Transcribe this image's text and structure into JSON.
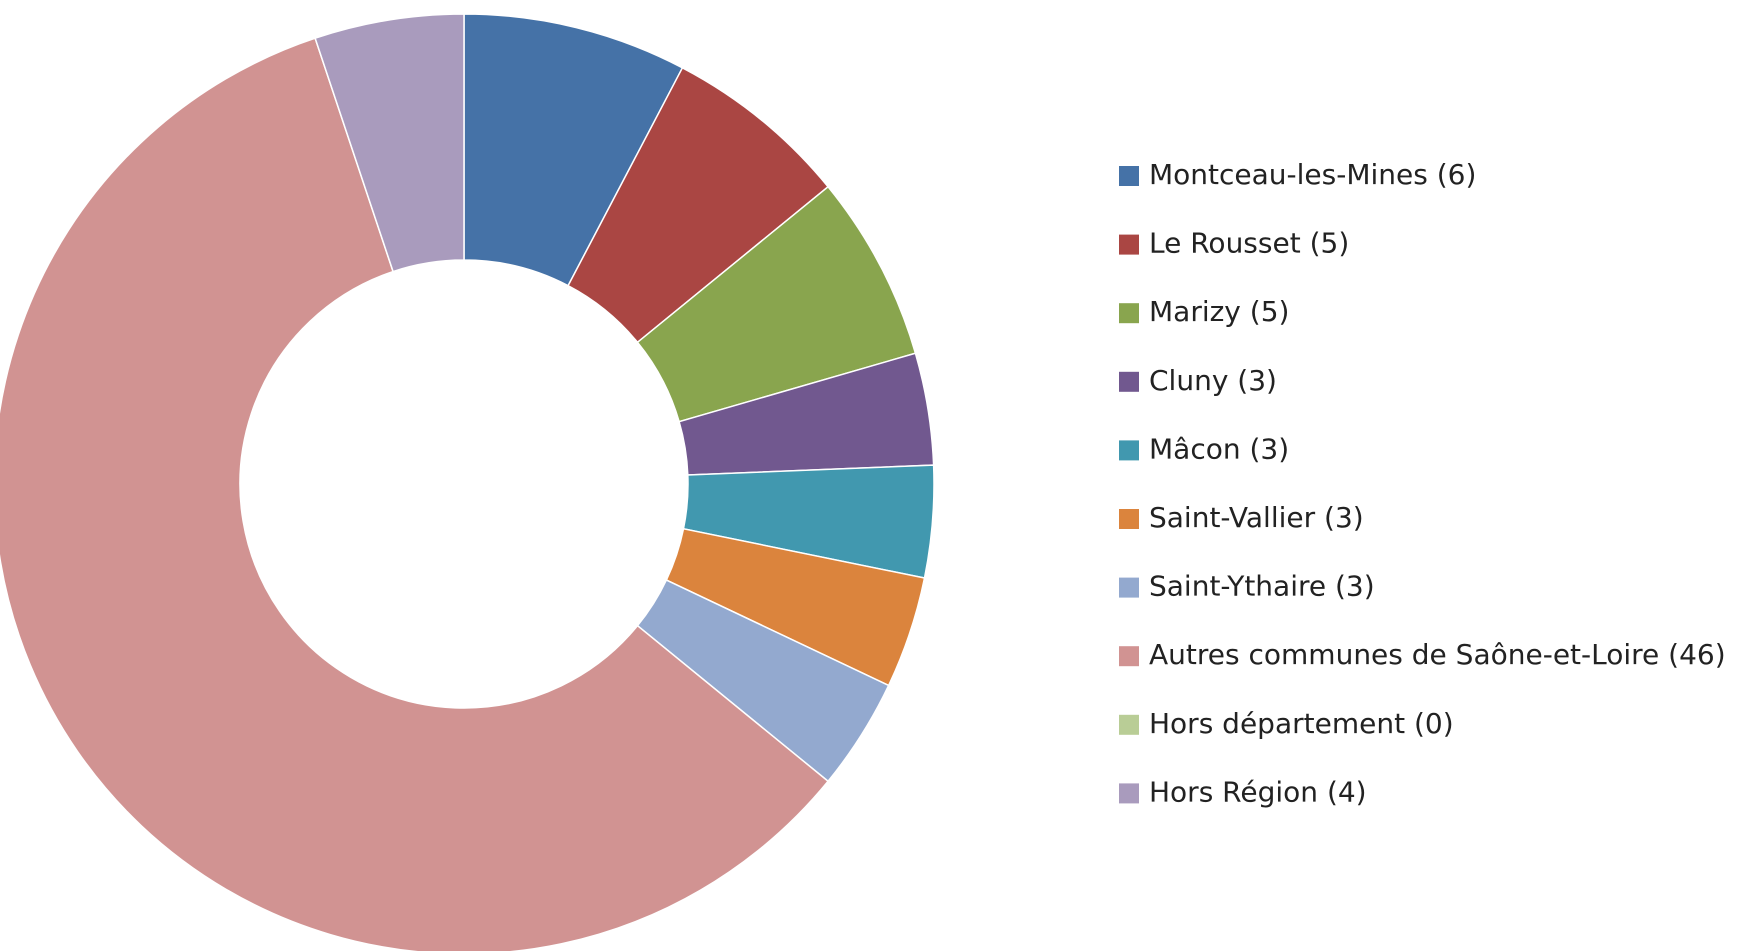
{
  "chart_data": {
    "type": "donut",
    "categories": [
      "Montceau-les-Mines (6)",
      "Le Rousset (5)",
      "Marizy (5)",
      "Cluny (3)",
      "Mâcon (3)",
      "Saint-Vallier (3)",
      "Saint-Ythaire (3)",
      "Autres communes de Saône-et-Loire (46)",
      "Hors département (0)",
      "Hors Région (4)"
    ],
    "values": [
      6,
      5,
      5,
      3,
      3,
      3,
      3,
      46,
      0,
      4
    ],
    "colors": [
      "#4572a7",
      "#aa4643",
      "#89a54e",
      "#71588f",
      "#4198af",
      "#db843d",
      "#93a9cf",
      "#d19392",
      "#b9cd96",
      "#a99bbd"
    ],
    "legend": "right"
  }
}
